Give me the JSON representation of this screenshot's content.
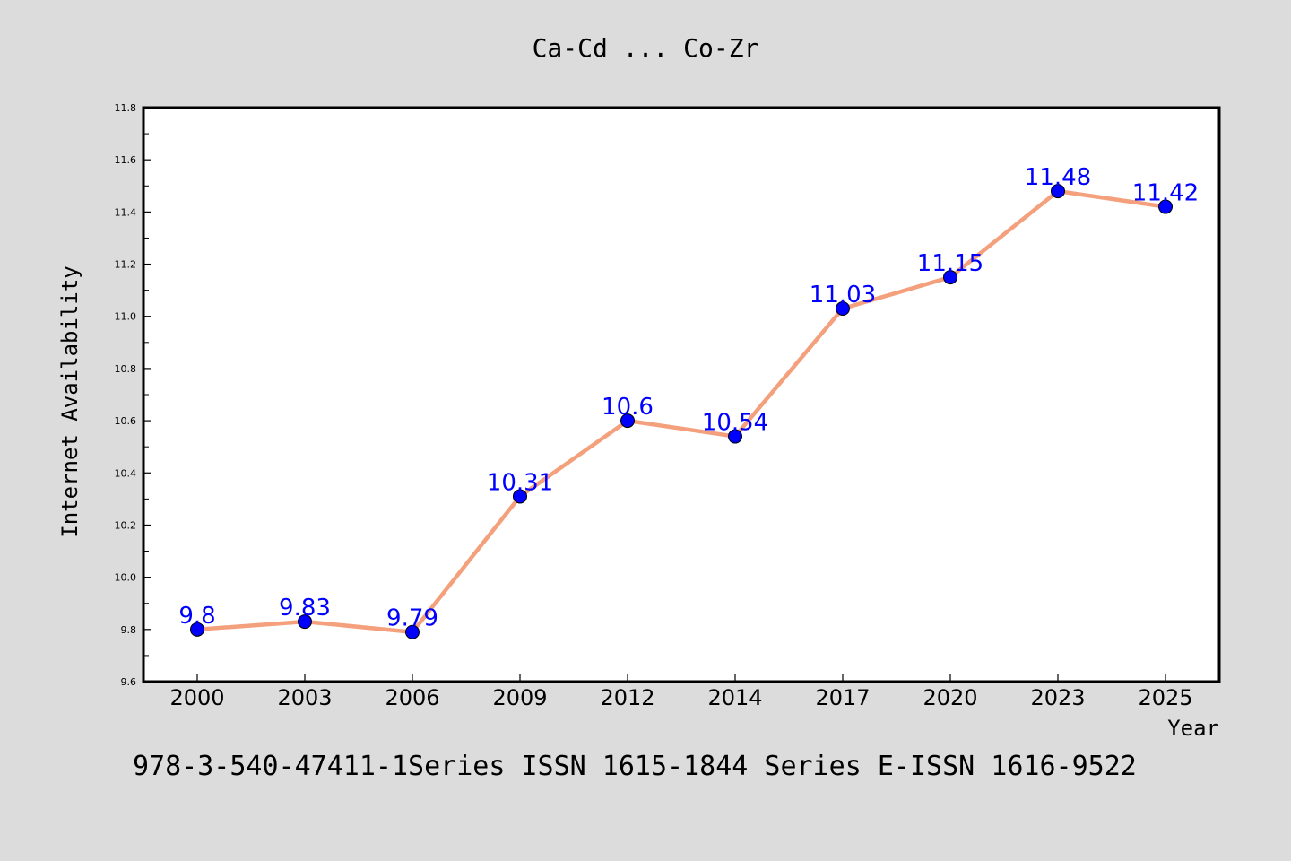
{
  "colors": {
    "background": "#dcdcdc",
    "plot_bg": "#ffffff",
    "line": "#f4a07c",
    "marker": "#0000ff",
    "data_label": "#0000ff",
    "text": "#000000"
  },
  "footer_text": "978-3-540-47411-1Series ISSN 1615-1844 Series E-ISSN 1616-9522",
  "chart_data": {
    "type": "line",
    "title": "Ca-Cd ... Co-Zr",
    "xlabel": "Year",
    "ylabel": "Internet Availability",
    "categories": [
      "2000",
      "2003",
      "2006",
      "2009",
      "2012",
      "2014",
      "2017",
      "2020",
      "2023",
      "2025"
    ],
    "series": [
      {
        "values": [
          9.8,
          9.83,
          9.79,
          10.31,
          10.6,
          10.54,
          11.03,
          11.15,
          11.48,
          11.42
        ],
        "labels": [
          "9.8",
          "9.83",
          "9.79",
          "10.31",
          "10.6",
          "10.54",
          "11.03",
          "11.15",
          "11.48",
          "11.42"
        ]
      }
    ],
    "ylim": [
      9.6,
      11.8
    ],
    "yticks": [
      "9.6",
      "9.8",
      "10.0",
      "10.2",
      "10.4",
      "10.6",
      "10.8",
      "11.0",
      "11.2",
      "11.4",
      "11.6",
      "11.8"
    ],
    "grid": false,
    "legend": "none",
    "markers": "circle"
  }
}
